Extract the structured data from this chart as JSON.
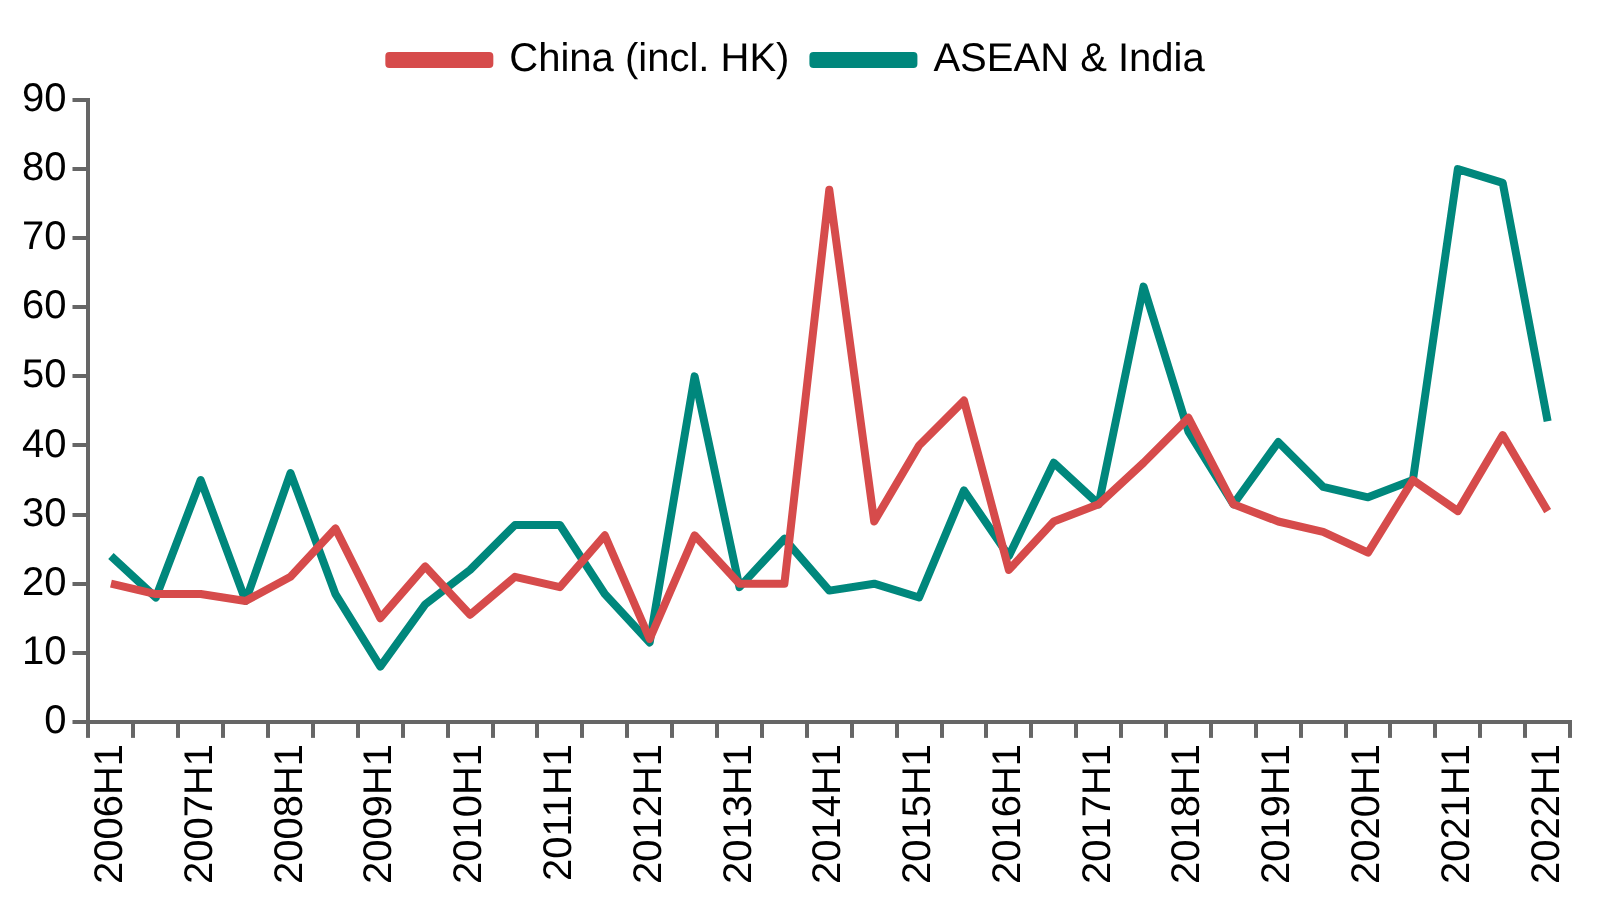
{
  "chart_data": {
    "type": "line",
    "categories": [
      "2006H1",
      null,
      "2007H1",
      null,
      "2008H1",
      null,
      "2009H1",
      null,
      "2010H1",
      null,
      "2011H1",
      null,
      "2012H1",
      null,
      "2013H1",
      null,
      "2014H1",
      null,
      "2015H1",
      null,
      "2016H1",
      null,
      "2017H1",
      null,
      "2018H1",
      null,
      "2019H1",
      null,
      "2020H1",
      null,
      "2021H1",
      null,
      "2022H1"
    ],
    "series": [
      {
        "name": "China (incl. HK)",
        "color": "#d64b4b",
        "values": [
          20,
          18.5,
          18.5,
          17.5,
          21,
          28,
          15,
          22.5,
          15.5,
          21,
          19.5,
          27,
          12,
          27,
          20,
          20,
          77,
          29,
          40,
          46.5,
          22,
          29,
          31.5,
          37.5,
          44,
          31.5,
          29,
          27.5,
          24.5,
          35,
          30.5,
          41.5,
          30.5
        ]
      },
      {
        "name": "ASEAN & India",
        "color": "#00877c",
        "values": [
          24,
          18,
          35,
          17.5,
          36,
          18.5,
          8,
          17,
          22,
          28.5,
          28.5,
          18.5,
          11.5,
          50,
          19.5,
          26.5,
          19,
          20,
          18,
          33.5,
          24,
          37.5,
          31.5,
          63,
          42,
          31.5,
          40.5,
          34,
          32.5,
          35,
          80,
          78,
          43.5
        ]
      }
    ],
    "ylim": [
      0,
      90
    ],
    "yticks": [
      0,
      10,
      20,
      30,
      40,
      50,
      60,
      70,
      80,
      90
    ],
    "grid": false,
    "legend": "top",
    "marker": "none",
    "line_style": "solid"
  }
}
